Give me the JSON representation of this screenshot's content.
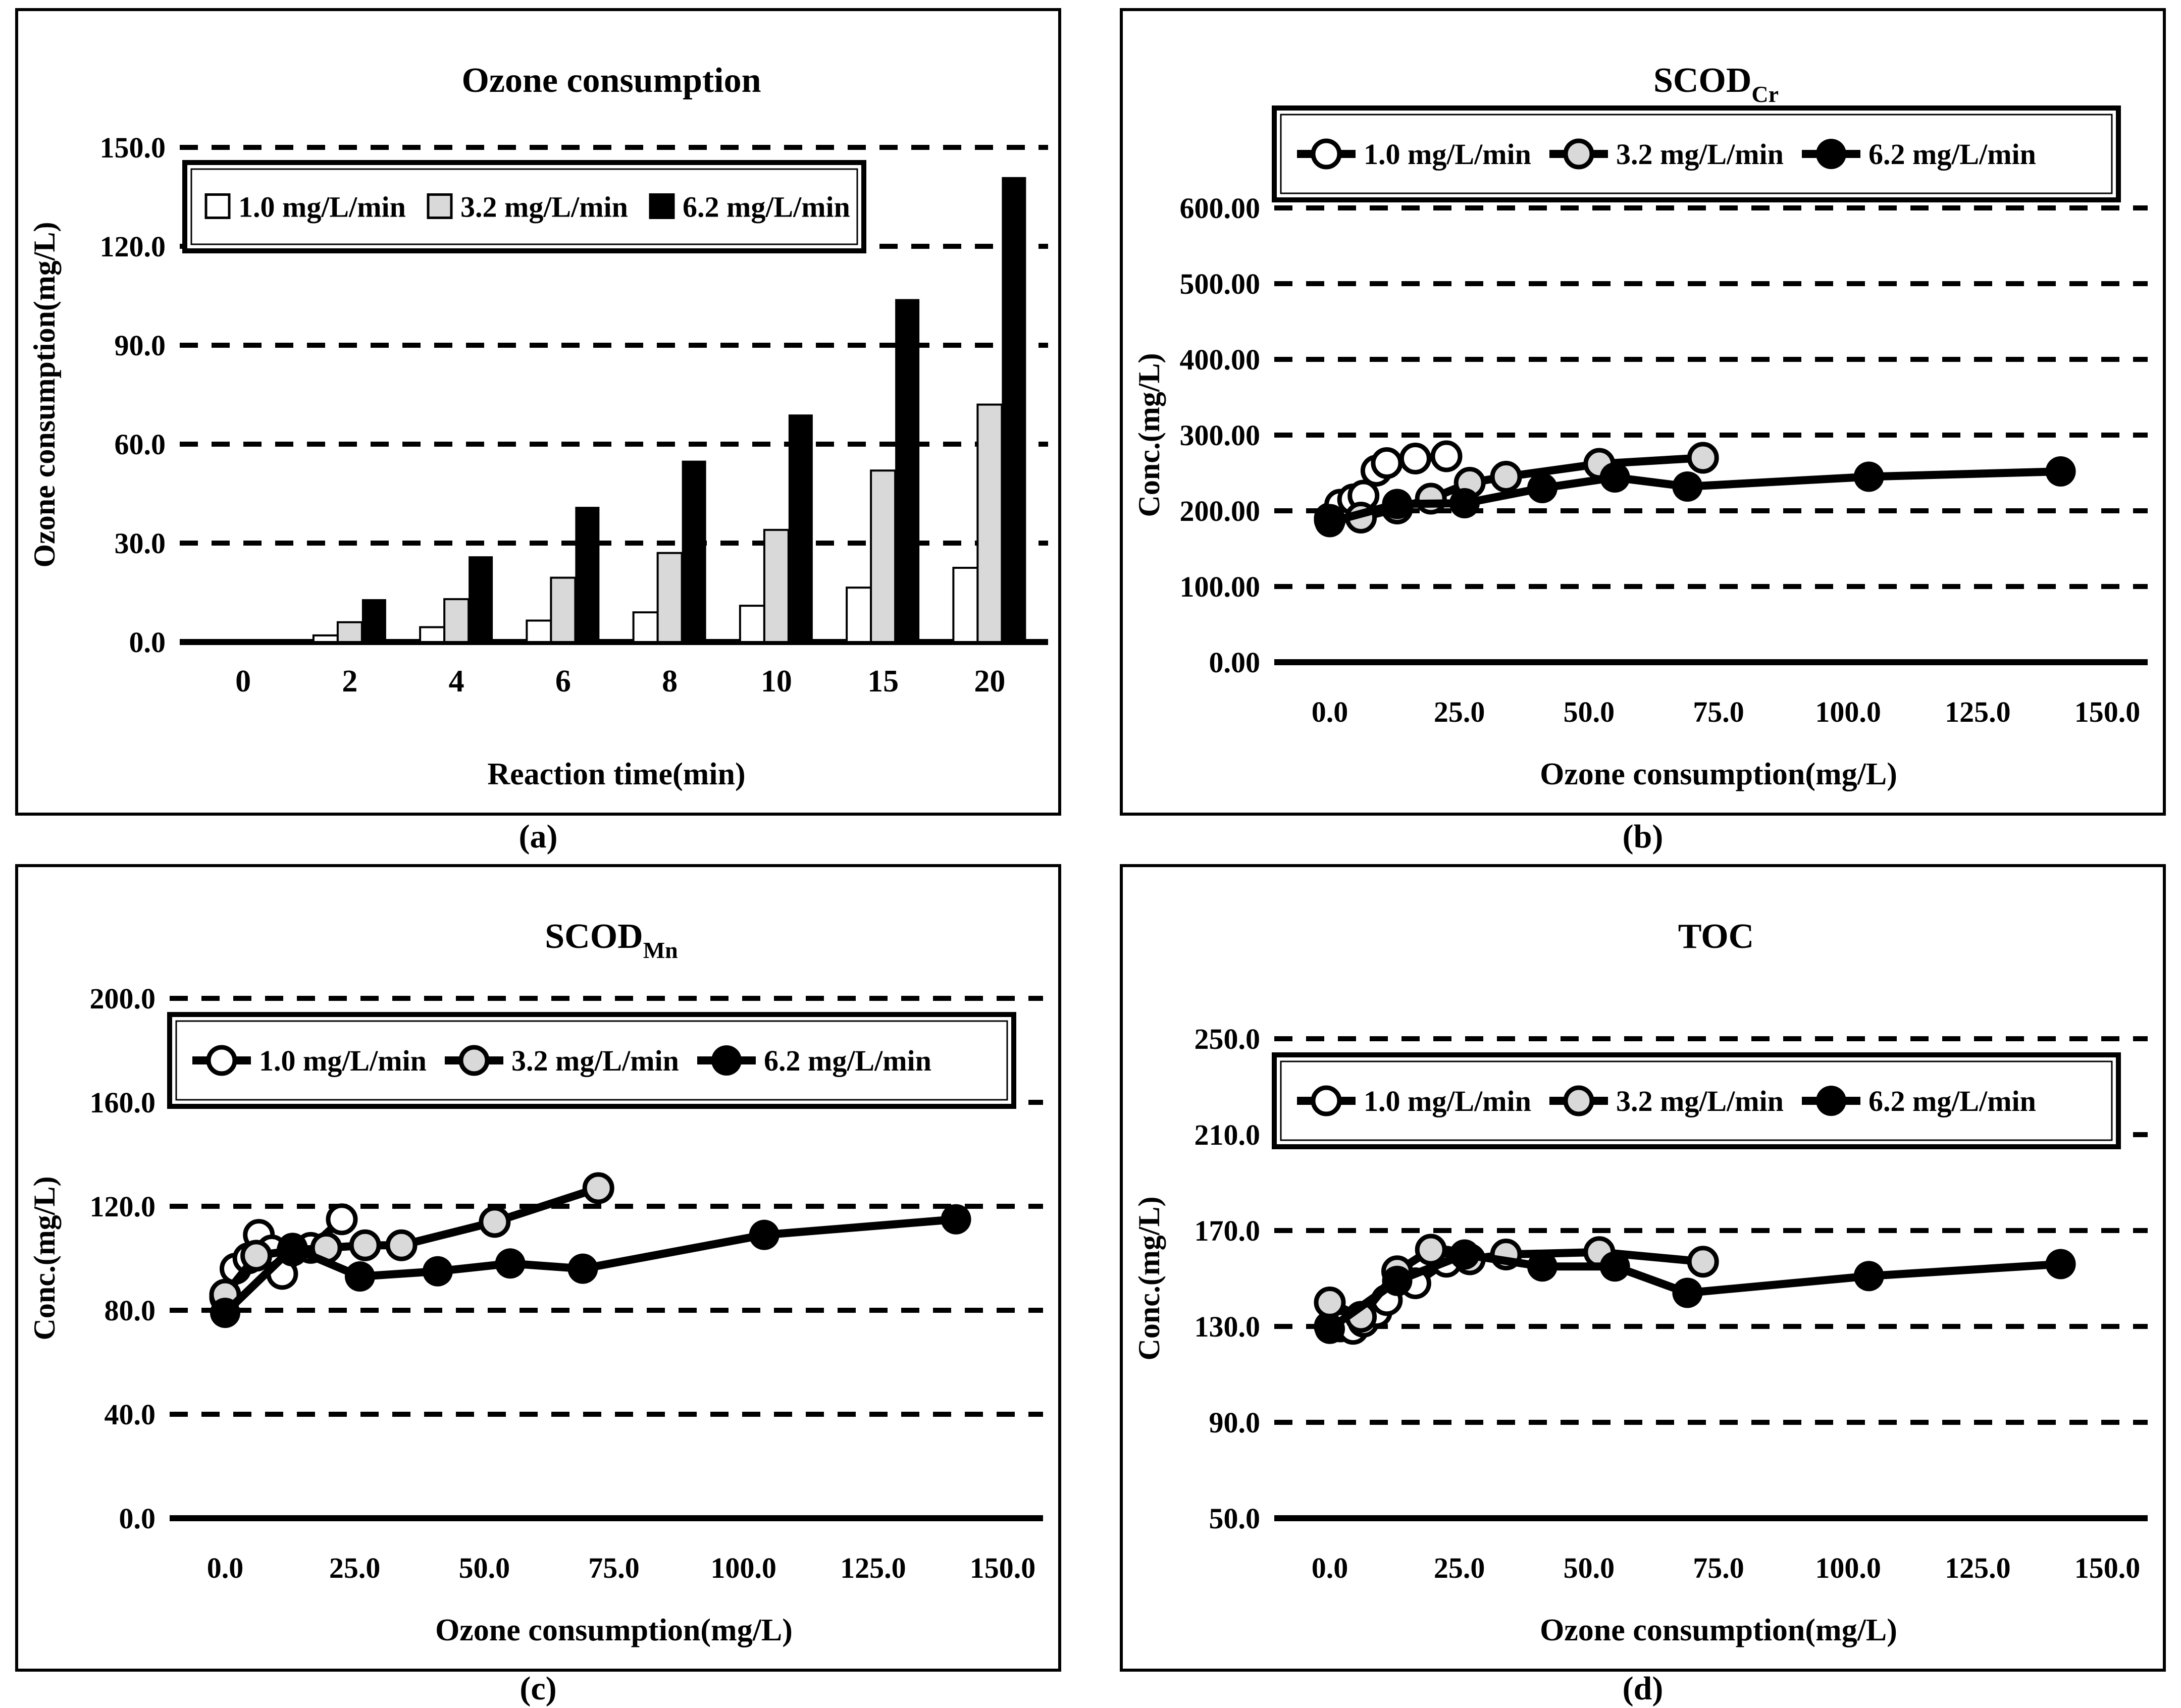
{
  "figure": {
    "background": "#ffffff",
    "ink": "#000000",
    "gray_fill": "#d9d9d9",
    "white_fill": "#ffffff",
    "captions": {
      "a": "(a)",
      "b": "(b)",
      "c": "(c)",
      "d": "(d)"
    },
    "legend_labels": [
      "1.0 mg/L/min",
      "3.2 mg/L/min",
      "6.2 mg/L/min"
    ]
  },
  "chart_data": [
    {
      "id": "a",
      "type": "bar",
      "caption": "(a)",
      "title": "Ozone consumption",
      "title_sub": "",
      "x_label": "Reaction time(min)",
      "y_label": "Ozone consumption(mg/L)",
      "categories": [
        "0",
        "2",
        "4",
        "6",
        "8",
        "10",
        "15",
        "20"
      ],
      "y_ticks": [
        "0.0",
        "30.0",
        "60.0",
        "90.0",
        "120.0",
        "150.0"
      ],
      "ylim": [
        0,
        150
      ],
      "grid": "horizontal-dashed",
      "legend_position": "inside-top",
      "legend": [
        "1.0 mg/L/min",
        "3.2 mg/L/min",
        "6.2 mg/L/min"
      ],
      "series": [
        {
          "name": "1.0 mg/L/min",
          "fill": "#ffffff",
          "values": [
            0,
            2,
            4.5,
            6.5,
            9,
            11,
            16.5,
            22.5
          ]
        },
        {
          "name": "3.2 mg/L/min",
          "fill": "#d9d9d9",
          "values": [
            0,
            6,
            13,
            19.5,
            27,
            34,
            52,
            72
          ]
        },
        {
          "name": "6.2 mg/L/min",
          "fill": "#000000",
          "values": [
            0,
            13,
            26,
            41,
            55,
            69,
            104,
            141
          ]
        }
      ]
    },
    {
      "id": "b",
      "type": "line",
      "caption": "(b)",
      "title": "SCOD",
      "title_sub": "Cr",
      "x_label": "Ozone consumption(mg/L)",
      "y_label": "Conc.(mg/L)",
      "x_ticks": [
        "0.0",
        "25.0",
        "50.0",
        "75.0",
        "100.0",
        "125.0",
        "150.0"
      ],
      "xlim": [
        0,
        150
      ],
      "y_ticks": [
        "0.00",
        "100.00",
        "200.00",
        "300.00",
        "400.00",
        "500.00",
        "600.00"
      ],
      "ylim": [
        0,
        600
      ],
      "grid": "horizontal-dashed",
      "legend_position": "inside-top",
      "legend": [
        "1.0 mg/L/min",
        "3.2 mg/L/min",
        "6.2 mg/L/min"
      ],
      "series": [
        {
          "name": "1.0 mg/L/min",
          "fill": "#ffffff",
          "x": [
            0,
            2,
            4.5,
            6.5,
            9,
            11,
            16.5,
            22.5
          ],
          "y": [
            190,
            208,
            215,
            220,
            253,
            263,
            269,
            272
          ]
        },
        {
          "name": "3.2 mg/L/min",
          "fill": "#d9d9d9",
          "x": [
            0,
            6,
            13,
            19.5,
            27,
            34,
            52,
            72
          ],
          "y": [
            188,
            191,
            203,
            216,
            237,
            245,
            262,
            270
          ]
        },
        {
          "name": "6.2 mg/L/min",
          "fill": "#000000",
          "x": [
            0,
            13,
            26,
            41,
            55,
            69,
            104,
            141
          ],
          "y": [
            185,
            209,
            210,
            230,
            244,
            232,
            245,
            252
          ]
        }
      ]
    },
    {
      "id": "c",
      "type": "line",
      "caption": "(c)",
      "title": "SCOD",
      "title_sub": "Mn",
      "x_label": "Ozone consumption(mg/L)",
      "y_label": "Conc.(mg/L)",
      "x_ticks": [
        "0.0",
        "25.0",
        "50.0",
        "75.0",
        "100.0",
        "125.0",
        "150.0"
      ],
      "xlim": [
        0,
        150
      ],
      "y_ticks": [
        "0.0",
        "40.0",
        "80.0",
        "120.0",
        "160.0",
        "200.0"
      ],
      "ylim": [
        0,
        200
      ],
      "grid": "horizontal-dashed",
      "legend_position": "inside-top",
      "legend": [
        "1.0 mg/L/min",
        "3.2 mg/L/min",
        "6.2 mg/L/min"
      ],
      "series": [
        {
          "name": "1.0 mg/L/min",
          "fill": "#ffffff",
          "x": [
            0,
            2,
            4.5,
            6.5,
            9,
            11,
            16.5,
            22.5
          ],
          "y": [
            85,
            96,
            100,
            109,
            103,
            94,
            104,
            115
          ]
        },
        {
          "name": "3.2 mg/L/min",
          "fill": "#d9d9d9",
          "x": [
            0,
            6,
            13,
            19.5,
            27,
            34,
            52,
            72
          ],
          "y": [
            86,
            101,
            103,
            104,
            105,
            105,
            114,
            127
          ]
        },
        {
          "name": "6.2 mg/L/min",
          "fill": "#000000",
          "x": [
            0,
            13,
            26,
            41,
            55,
            69,
            104,
            141
          ],
          "y": [
            79,
            104,
            93,
            95,
            98,
            96,
            109,
            115
          ]
        }
      ]
    },
    {
      "id": "d",
      "type": "line",
      "caption": "(d)",
      "title": "TOC",
      "title_sub": "",
      "x_label": "Ozone consumption(mg/L)",
      "y_label": "Conc.(mg/L)",
      "x_ticks": [
        "0.0",
        "25.0",
        "50.0",
        "75.0",
        "100.0",
        "125.0",
        "150.0"
      ],
      "xlim": [
        0,
        150
      ],
      "y_ticks": [
        "50.0",
        "90.0",
        "130.0",
        "170.0",
        "210.0",
        "250.0"
      ],
      "ylim": [
        50,
        250
      ],
      "grid": "horizontal-dashed",
      "legend_position": "inside-top",
      "legend": [
        "1.0 mg/L/min",
        "3.2 mg/L/min",
        "6.2 mg/L/min"
      ],
      "series": [
        {
          "name": "1.0 mg/L/min",
          "fill": "#ffffff",
          "x": [
            0,
            2,
            4.5,
            6.5,
            9,
            11,
            16.5,
            22.5
          ],
          "y": [
            130,
            130,
            129,
            132,
            136,
            141,
            148,
            157
          ]
        },
        {
          "name": "3.2 mg/L/min",
          "fill": "#d9d9d9",
          "x": [
            0,
            6,
            13,
            19.5,
            27,
            34,
            52,
            72
          ],
          "y": [
            140,
            134,
            153,
            162,
            158,
            160,
            161,
            157
          ]
        },
        {
          "name": "6.2 mg/L/min",
          "fill": "#000000",
          "x": [
            0,
            13,
            26,
            41,
            55,
            69,
            104,
            141
          ],
          "y": [
            129,
            149,
            160,
            155,
            155,
            144,
            151,
            156
          ]
        }
      ]
    }
  ]
}
